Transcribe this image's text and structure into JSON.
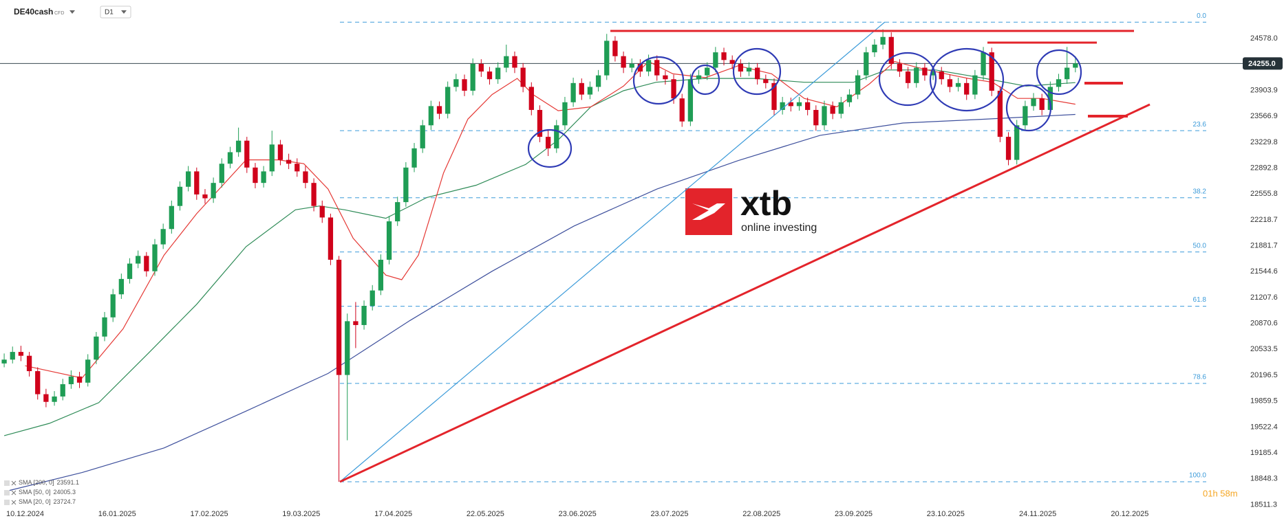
{
  "chart_data": {
    "type": "candlestick",
    "symbol": "DE40cash",
    "instrument_type": "CFD",
    "timeframe": "D1",
    "up_color": "#1f9d55",
    "down_color": "#d0021b",
    "candles": [
      [
        20350,
        20480,
        20300,
        20400
      ],
      [
        20400,
        20570,
        20350,
        20500
      ],
      [
        20500,
        20580,
        20380,
        20450
      ],
      [
        20450,
        20500,
        20180,
        20250
      ],
      [
        20250,
        20300,
        19880,
        19950
      ],
      [
        19950,
        20020,
        19780,
        19850
      ],
      [
        19850,
        19990,
        19800,
        19920
      ],
      [
        19920,
        20150,
        19870,
        20080
      ],
      [
        20080,
        20260,
        20020,
        20180
      ],
      [
        20180,
        20240,
        20030,
        20100
      ],
      [
        20100,
        20470,
        20050,
        20400
      ],
      [
        20400,
        20760,
        20340,
        20700
      ],
      [
        20700,
        21020,
        20640,
        20950
      ],
      [
        20950,
        21320,
        20890,
        21250
      ],
      [
        21250,
        21520,
        21190,
        21450
      ],
      [
        21450,
        21720,
        21390,
        21650
      ],
      [
        21650,
        21820,
        21590,
        21750
      ],
      [
        21750,
        21800,
        21480,
        21550
      ],
      [
        21550,
        21970,
        21490,
        21900
      ],
      [
        21900,
        22170,
        21840,
        22100
      ],
      [
        22100,
        22470,
        22040,
        22400
      ],
      [
        22400,
        22720,
        22340,
        22650
      ],
      [
        22650,
        22920,
        22590,
        22850
      ],
      [
        22850,
        22900,
        22480,
        22550
      ],
      [
        22550,
        22620,
        22430,
        22500
      ],
      [
        22500,
        22770,
        22440,
        22700
      ],
      [
        22700,
        23020,
        22640,
        22950
      ],
      [
        22950,
        23170,
        22890,
        23100
      ],
      [
        23100,
        23420,
        23040,
        23250
      ],
      [
        23250,
        23300,
        22830,
        22900
      ],
      [
        22900,
        22960,
        22630,
        22700
      ],
      [
        22700,
        22920,
        22640,
        22850
      ],
      [
        22850,
        23380,
        22790,
        23200
      ],
      [
        23200,
        23260,
        22930,
        23000
      ],
      [
        23000,
        23080,
        22880,
        22950
      ],
      [
        22950,
        23020,
        22780,
        22850
      ],
      [
        22850,
        22920,
        22630,
        22700
      ],
      [
        22700,
        22760,
        22330,
        22400
      ],
      [
        22400,
        22470,
        22180,
        22250
      ],
      [
        22250,
        22300,
        21630,
        21700
      ],
      [
        21700,
        21750,
        18810,
        20200
      ],
      [
        20200,
        21000,
        19350,
        20900
      ],
      [
        20900,
        21150,
        20550,
        20850
      ],
      [
        20850,
        21170,
        20790,
        21100
      ],
      [
        21100,
        21370,
        21040,
        21300
      ],
      [
        21300,
        21770,
        21240,
        21700
      ],
      [
        21700,
        22270,
        21640,
        22200
      ],
      [
        22200,
        22520,
        22140,
        22450
      ],
      [
        22450,
        22970,
        22390,
        22900
      ],
      [
        22900,
        23220,
        22840,
        23150
      ],
      [
        23150,
        23520,
        23090,
        23450
      ],
      [
        23450,
        23770,
        23390,
        23700
      ],
      [
        23700,
        23760,
        23530,
        23600
      ],
      [
        23600,
        24020,
        23540,
        23950
      ],
      [
        23950,
        24120,
        23890,
        24050
      ],
      [
        24050,
        24110,
        23830,
        23900
      ],
      [
        23900,
        24320,
        23840,
        24250
      ],
      [
        24250,
        24310,
        24080,
        24150
      ],
      [
        24150,
        24210,
        23980,
        24050
      ],
      [
        24050,
        24270,
        23990,
        24200
      ],
      [
        24200,
        24500,
        24140,
        24350
      ],
      [
        24350,
        24410,
        24130,
        24200
      ],
      [
        24200,
        24260,
        23880,
        23950
      ],
      [
        23950,
        24010,
        23580,
        23650
      ],
      [
        23650,
        23710,
        23230,
        23300
      ],
      [
        23300,
        23400,
        23050,
        23150
      ],
      [
        23150,
        23520,
        23090,
        23450
      ],
      [
        23450,
        23820,
        23390,
        23750
      ],
      [
        23750,
        24070,
        23690,
        24000
      ],
      [
        24000,
        24060,
        23780,
        23850
      ],
      [
        23850,
        24020,
        23790,
        23950
      ],
      [
        23950,
        24170,
        23890,
        24100
      ],
      [
        24100,
        24640,
        24040,
        24550
      ],
      [
        24550,
        24610,
        24280,
        24350
      ],
      [
        24350,
        24410,
        24130,
        24200
      ],
      [
        24200,
        24320,
        24140,
        24250
      ],
      [
        24250,
        24310,
        24080,
        24150
      ],
      [
        24150,
        24370,
        24090,
        24300
      ],
      [
        24300,
        24360,
        24030,
        24100
      ],
      [
        24100,
        24160,
        23980,
        24050
      ],
      [
        24050,
        24110,
        23730,
        23800
      ],
      [
        23800,
        23860,
        23430,
        23500
      ],
      [
        23500,
        24120,
        23440,
        24050
      ],
      [
        24050,
        24170,
        23990,
        24100
      ],
      [
        24100,
        24270,
        24040,
        24200
      ],
      [
        24200,
        24470,
        24140,
        24400
      ],
      [
        24400,
        24460,
        24230,
        24300
      ],
      [
        24300,
        24360,
        24180,
        24250
      ],
      [
        24250,
        24310,
        24080,
        24150
      ],
      [
        24150,
        24270,
        24090,
        24200
      ],
      [
        24200,
        24260,
        23980,
        24050
      ],
      [
        24050,
        24110,
        23930,
        24000
      ],
      [
        24000,
        24060,
        23580,
        23650
      ],
      [
        23650,
        23820,
        23590,
        23750
      ],
      [
        23750,
        23810,
        23630,
        23700
      ],
      [
        23700,
        23820,
        23640,
        23750
      ],
      [
        23750,
        23810,
        23580,
        23650
      ],
      [
        23650,
        23710,
        23380,
        23450
      ],
      [
        23450,
        23770,
        23390,
        23700
      ],
      [
        23700,
        23760,
        23530,
        23600
      ],
      [
        23600,
        23820,
        23540,
        23750
      ],
      [
        23750,
        23920,
        23690,
        23850
      ],
      [
        23850,
        24170,
        23790,
        24100
      ],
      [
        24100,
        24470,
        24040,
        24400
      ],
      [
        24400,
        24570,
        24340,
        24500
      ],
      [
        24500,
        24700,
        24440,
        24600
      ],
      [
        24600,
        24660,
        24180,
        24250
      ],
      [
        24250,
        24310,
        24080,
        24150
      ],
      [
        24150,
        24210,
        23930,
        24000
      ],
      [
        24000,
        24270,
        23940,
        24200
      ],
      [
        24200,
        24260,
        24030,
        24100
      ],
      [
        24100,
        24220,
        24040,
        24150
      ],
      [
        24150,
        24210,
        23980,
        24050
      ],
      [
        24050,
        24110,
        23880,
        23950
      ],
      [
        23950,
        24070,
        23890,
        24000
      ],
      [
        24000,
        24060,
        23780,
        23850
      ],
      [
        23850,
        24170,
        23790,
        24100
      ],
      [
        24100,
        24470,
        24040,
        24400
      ],
      [
        24400,
        24460,
        23830,
        23900
      ],
      [
        23900,
        23960,
        23230,
        23300
      ],
      [
        23300,
        23360,
        22930,
        23000
      ],
      [
        23000,
        23520,
        22940,
        23450
      ],
      [
        23450,
        23770,
        23390,
        23700
      ],
      [
        23700,
        23870,
        23640,
        23800
      ],
      [
        23800,
        23860,
        23580,
        23650
      ],
      [
        23650,
        24020,
        23590,
        23950
      ],
      [
        23950,
        24120,
        23890,
        24050
      ],
      [
        24050,
        24470,
        23990,
        24200
      ],
      [
        24200,
        24350,
        24140,
        24255
      ]
    ],
    "series": [
      {
        "name": "SMA [200, 0]",
        "last_value": 23591.1,
        "color": "#3d4f9c",
        "x": [
          0,
          9.3,
          19.1,
          28.9,
          38.7,
          48.5,
          58.3,
          68.1,
          78,
          87.7,
          97.5,
          107.4,
          117.2,
          128
        ],
        "values": [
          18680,
          18930,
          19250,
          19730,
          20220,
          20910,
          21550,
          22140,
          22620,
          22990,
          23320,
          23480,
          23530,
          23591.1
        ]
      },
      {
        "name": "SMA [50, 0]",
        "last_value": 24005.3,
        "color": "#2e8b57",
        "x": [
          0,
          5.4,
          11.3,
          17.2,
          23,
          28.9,
          34.8,
          37.7,
          40.7,
          45.6,
          50.5,
          56.4,
          62.3,
          66.2,
          70.1,
          74,
          77.9,
          83.8,
          89.7,
          95.6,
          101.5,
          105.4,
          111.3,
          117.2,
          122.1,
          128
        ],
        "values": [
          19410,
          19570,
          19840,
          20480,
          21120,
          21870,
          22350,
          22400,
          22350,
          22240,
          22510,
          22670,
          22940,
          23260,
          23690,
          23900,
          24010,
          24060,
          24060,
          24010,
          24010,
          24170,
          24170,
          24060,
          23960,
          24005.3
        ]
      },
      {
        "name": "SMA [20, 0]",
        "last_value": 23724.7,
        "color": "#e53935",
        "x": [
          2.5,
          9.3,
          14.2,
          19.1,
          23,
          28.9,
          32.8,
          35.8,
          38.7,
          41.7,
          45.6,
          47.5,
          49.5,
          52.5,
          55.4,
          58.3,
          61.3,
          63.2,
          66.2,
          70.1,
          74,
          77,
          79.9,
          83.8,
          87.7,
          91.7,
          95.6,
          99.5,
          103.4,
          106.4,
          110.3,
          115.2,
          118.1,
          121.1,
          124,
          128
        ],
        "values": [
          20320,
          20160,
          20800,
          21760,
          22300,
          23000,
          23000,
          22950,
          22620,
          21980,
          21500,
          21440,
          21760,
          22830,
          23530,
          23850,
          24060,
          23850,
          23640,
          23690,
          23960,
          24280,
          24120,
          24070,
          24225,
          24120,
          23800,
          23690,
          23990,
          24280,
          24170,
          24060,
          24010,
          23800,
          23800,
          23724.7
        ]
      }
    ],
    "fib_color": "#3a9ad9",
    "fib_levels": [
      {
        "label": "0.0",
        "value": 24792
      },
      {
        "label": "23.6",
        "value": 23380
      },
      {
        "label": "38.2",
        "value": 22507
      },
      {
        "label": "50.0",
        "value": 21801
      },
      {
        "label": "61.8",
        "value": 21095
      },
      {
        "label": "78.6",
        "value": 20090
      },
      {
        "label": "100.0",
        "value": 18810
      }
    ],
    "last_price": {
      "value": 24255,
      "label": "24255.0"
    },
    "xlim": [
      -0.5,
      147.5
    ],
    "xticks": [
      {
        "value": 2.5,
        "label": "10.12.2024"
      },
      {
        "value": 13.5,
        "label": "16.01.2025"
      },
      {
        "value": 24.5,
        "label": "17.02.2025"
      },
      {
        "value": 35.5,
        "label": "19.03.2025"
      },
      {
        "value": 46.5,
        "label": "17.04.2025"
      },
      {
        "value": 57.5,
        "label": "22.05.2025"
      },
      {
        "value": 68.5,
        "label": "23.06.2025"
      },
      {
        "value": 79.5,
        "label": "23.07.2025"
      },
      {
        "value": 90.5,
        "label": "22.08.2025"
      },
      {
        "value": 101.5,
        "label": "23.09.2025"
      },
      {
        "value": 112.5,
        "label": "23.10.2025"
      },
      {
        "value": 123.5,
        "label": "24.11.2025"
      },
      {
        "value": 134.5,
        "label": "20.12.2025"
      }
    ],
    "ylim": [
      18479,
      25081
    ],
    "yticks": [
      {
        "value": 24578,
        "label": "24578.0"
      },
      23903.9,
      23566.9,
      23229.8,
      22892.8,
      22555.8,
      22218.7,
      21881.7,
      21544.6,
      21207.6,
      20870.6,
      20533.5,
      20196.5,
      19859.5,
      19522.4,
      19185.4,
      18848.3,
      18511.3
    ],
    "grid": false,
    "logo": {
      "name": "xtb",
      "tagline": "online investing"
    },
    "timer": "01h 58m"
  }
}
